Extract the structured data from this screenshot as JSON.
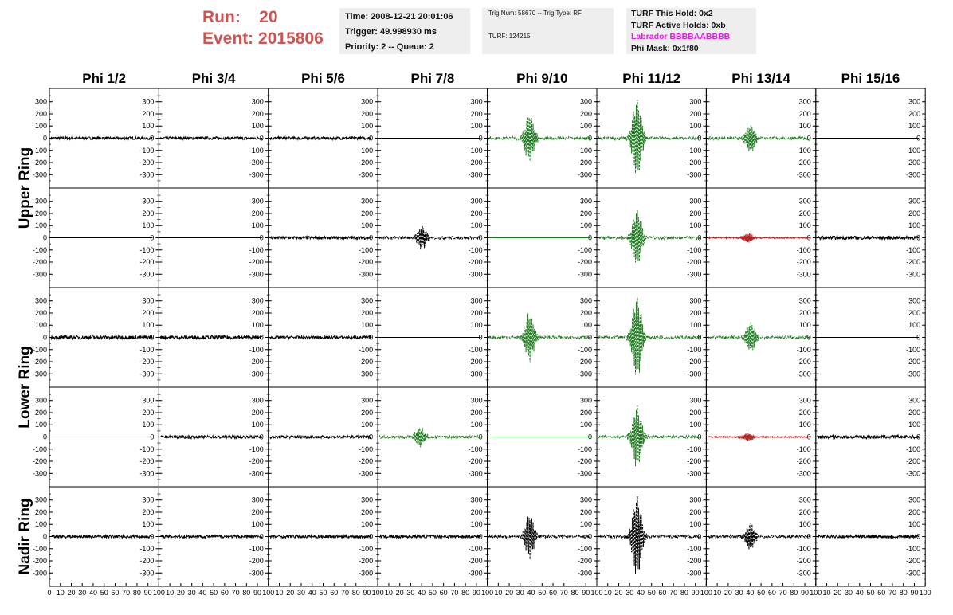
{
  "header": {
    "run_label": "Run:",
    "run_value": "20",
    "event_label": "Event:",
    "event_value": "2015806"
  },
  "info_box1": {
    "time": "Time: 2008-12-21 20:01:06",
    "trigger": "Trigger: 49.998930 ms",
    "priority": "Priority: 2 -- Queue: 2"
  },
  "info_box2": {
    "trig": "Trig Num: 58670 -- Trig Type: RF",
    "turf": "TURF: 124215"
  },
  "info_box3": {
    "this_hold": "TURF This Hold: 0x2",
    "active_holds": "TURF Active Holds: 0xb",
    "labrador": "Labrador BBBBAABBBB",
    "phi_mask": "Phi Mask: 0x1f80"
  },
  "colors": {
    "run_text": "#d0534f",
    "labrador_text": "#e619e6",
    "trace_black": "#000000",
    "trace_green": "#1e7a1e",
    "trace_red": "#b22222",
    "panel_bg": "#eeeeee"
  },
  "chart_data": {
    "type": "line",
    "columns": [
      "Phi 1/2",
      "Phi 3/4",
      "Phi 5/6",
      "Phi 7/8",
      "Phi 9/10",
      "Phi 11/12",
      "Phi 13/14",
      "Phi 15/16"
    ],
    "ring_labels": [
      "Upper Ring",
      "Lower Ring",
      "Nadir Ring"
    ],
    "ylim": [
      -390,
      390
    ],
    "yticks": [
      -300,
      -200,
      -100,
      0,
      100,
      200,
      300
    ],
    "xlim": [
      0,
      100
    ],
    "xticks": [
      0,
      10,
      20,
      30,
      40,
      50,
      60,
      70,
      80,
      90,
      100
    ],
    "x_tick_labels": [
      "0",
      "10",
      "20",
      "30",
      "40",
      "50",
      "60",
      "70",
      "80",
      "90",
      "100"
    ],
    "rows": [
      [
        {
          "color": "black",
          "kind": "noise",
          "amp": 12
        },
        {
          "color": "black",
          "kind": "noise",
          "amp": 12
        },
        {
          "color": "black",
          "kind": "noise",
          "amp": 12
        },
        {
          "color": "black",
          "kind": "flat",
          "amp": 0
        },
        {
          "color": "green",
          "kind": "pulse",
          "amp": 200,
          "center": 40,
          "dashed": true
        },
        {
          "color": "green",
          "kind": "pulse",
          "amp": 320,
          "center": 38,
          "dashed": true
        },
        {
          "color": "green",
          "kind": "pulse",
          "amp": 120,
          "center": 42,
          "dashed": true
        },
        {
          "color": "black",
          "kind": "flat",
          "amp": 0
        }
      ],
      [
        {
          "color": "black",
          "kind": "flat",
          "amp": 0
        },
        {
          "color": "black",
          "kind": "flat",
          "amp": 0
        },
        {
          "color": "black",
          "kind": "noise",
          "amp": 12
        },
        {
          "color": "black",
          "kind": "pulse",
          "amp": 100,
          "center": 42,
          "dashed": true
        },
        {
          "color": "green",
          "kind": "flat",
          "amp": 0
        },
        {
          "color": "green",
          "kind": "pulse",
          "amp": 230,
          "center": 38,
          "dashed": true
        },
        {
          "color": "red",
          "kind": "pulse",
          "amp": 40,
          "center": 40,
          "dashed": false
        },
        {
          "color": "black",
          "kind": "noise",
          "amp": 14
        }
      ],
      [
        {
          "color": "black",
          "kind": "noise",
          "amp": 15
        },
        {
          "color": "black",
          "kind": "noise",
          "amp": 15
        },
        {
          "color": "black",
          "kind": "noise",
          "amp": 12
        },
        {
          "color": "black",
          "kind": "flat",
          "amp": 0
        },
        {
          "color": "green",
          "kind": "pulse",
          "amp": 200,
          "center": 40,
          "dashed": true
        },
        {
          "color": "green",
          "kind": "pulse",
          "amp": 340,
          "center": 38,
          "dashed": true
        },
        {
          "color": "green",
          "kind": "pulse",
          "amp": 120,
          "center": 42,
          "dashed": true
        },
        {
          "color": "black",
          "kind": "flat",
          "amp": 0
        }
      ],
      [
        {
          "color": "black",
          "kind": "flat",
          "amp": 0
        },
        {
          "color": "black",
          "kind": "noise",
          "amp": 12
        },
        {
          "color": "black",
          "kind": "noise",
          "amp": 12
        },
        {
          "color": "green",
          "kind": "pulse",
          "amp": 80,
          "center": 40,
          "dashed": true
        },
        {
          "color": "green",
          "kind": "flat",
          "amp": 0
        },
        {
          "color": "green",
          "kind": "pulse",
          "amp": 250,
          "center": 38,
          "dashed": true
        },
        {
          "color": "red",
          "kind": "pulse",
          "amp": 35,
          "center": 40,
          "dashed": false
        },
        {
          "color": "black",
          "kind": "noise",
          "amp": 14
        }
      ],
      [
        {
          "color": "black",
          "kind": "noise",
          "amp": 12
        },
        {
          "color": "black",
          "kind": "noise",
          "amp": 12
        },
        {
          "color": "black",
          "kind": "noise",
          "amp": 12
        },
        {
          "color": "black",
          "kind": "noise",
          "amp": 12
        },
        {
          "color": "black",
          "kind": "pulse",
          "amp": 180,
          "center": 40,
          "dashed": true
        },
        {
          "color": "black",
          "kind": "pulse",
          "amp": 330,
          "center": 38,
          "dashed": true
        },
        {
          "color": "black",
          "kind": "pulse",
          "amp": 110,
          "center": 42,
          "dashed": true
        },
        {
          "color": "black",
          "kind": "noise",
          "amp": 12
        }
      ]
    ]
  }
}
